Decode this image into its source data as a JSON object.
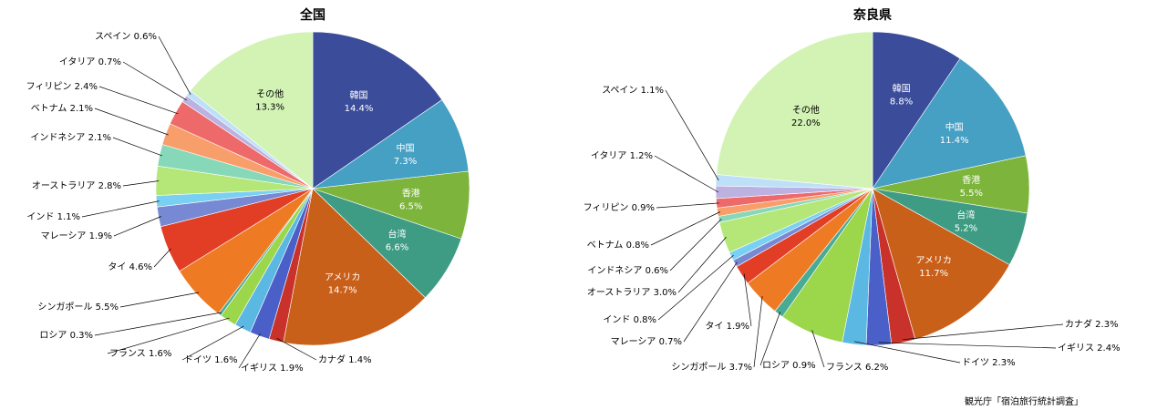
{
  "source": "観光庁「宿泊旅行統計調査」",
  "chart_data": [
    {
      "type": "pie",
      "title": "全国",
      "slices": [
        {
          "name": "韓国",
          "value": 14.4,
          "label": "14.4%",
          "color": "#3b4c9b"
        },
        {
          "name": "中国",
          "value": 7.3,
          "label": "7.3%",
          "color": "#45a0c4"
        },
        {
          "name": "香港",
          "value": 6.5,
          "label": "6.5%",
          "color": "#7db43c"
        },
        {
          "name": "台湾",
          "value": 6.6,
          "label": "6.6%",
          "color": "#3f9c84"
        },
        {
          "name": "アメリカ",
          "value": 14.7,
          "label": "14.7%",
          "color": "#c9601a"
        },
        {
          "name": "カナダ",
          "value": 1.4,
          "label": "1.4%",
          "color": "#c8322a"
        },
        {
          "name": "イギリス",
          "value": 1.9,
          "label": "1.9%",
          "color": "#4a60c8"
        },
        {
          "name": "ドイツ",
          "value": 1.6,
          "label": "1.6%",
          "color": "#5ab8e2"
        },
        {
          "name": "フランス",
          "value": 1.6,
          "label": "1.6%",
          "color": "#9cd64a"
        },
        {
          "name": "ロシア",
          "value": 0.3,
          "label": "0.3%",
          "color": "#4aab94"
        },
        {
          "name": "シンガポール",
          "value": 5.5,
          "label": "5.5%",
          "color": "#ee7a24"
        },
        {
          "name": "タイ",
          "value": 4.6,
          "label": "4.6%",
          "color": "#e23e26"
        },
        {
          "name": "マレーシア",
          "value": 1.9,
          "label": "1.9%",
          "color": "#7889d4"
        },
        {
          "name": "インド",
          "value": 1.1,
          "label": "1.1%",
          "color": "#7ad0f2"
        },
        {
          "name": "オーストラリア",
          "value": 2.8,
          "label": "2.8%",
          "color": "#b4e678"
        },
        {
          "name": "インドネシア",
          "value": 2.1,
          "label": "2.1%",
          "color": "#86d8b8"
        },
        {
          "name": "ベトナム",
          "value": 2.1,
          "label": "2.1%",
          "color": "#f89e6a"
        },
        {
          "name": "フィリピン",
          "value": 2.4,
          "label": "2.4%",
          "color": "#ee6a6a"
        },
        {
          "name": "イタリア",
          "value": 0.7,
          "label": "0.7%",
          "color": "#bcb2e2"
        },
        {
          "name": "スペイン",
          "value": 0.6,
          "label": "0.6%",
          "color": "#bde0f8"
        },
        {
          "name": "その他",
          "value": 13.3,
          "label": "13.3%",
          "color": "#d2f3b4"
        }
      ]
    },
    {
      "type": "pie",
      "title": "奈良県",
      "slices": [
        {
          "name": "韓国",
          "value": 8.8,
          "label": "8.8%",
          "color": "#3b4c9b"
        },
        {
          "name": "中国",
          "value": 11.4,
          "label": "11.4%",
          "color": "#45a0c4"
        },
        {
          "name": "香港",
          "value": 5.5,
          "label": "5.5%",
          "color": "#7db43c"
        },
        {
          "name": "台湾",
          "value": 5.2,
          "label": "5.2%",
          "color": "#3f9c84"
        },
        {
          "name": "アメリカ",
          "value": 11.7,
          "label": "11.7%",
          "color": "#c9601a"
        },
        {
          "name": "カナダ",
          "value": 2.3,
          "label": "2.3%",
          "color": "#c8322a"
        },
        {
          "name": "イギリス",
          "value": 2.4,
          "label": "2.4%",
          "color": "#4a60c8"
        },
        {
          "name": "ドイツ",
          "value": 2.3,
          "label": "2.3%",
          "color": "#5ab8e2"
        },
        {
          "name": "フランス",
          "value": 6.2,
          "label": "6.2%",
          "color": "#9cd64a"
        },
        {
          "name": "ロシア",
          "value": 0.9,
          "label": "0.9%",
          "color": "#4aab94"
        },
        {
          "name": "シンガポール",
          "value": 3.7,
          "label": "3.7%",
          "color": "#ee7a24"
        },
        {
          "name": "タイ",
          "value": 1.9,
          "label": "1.9%",
          "color": "#e23e26"
        },
        {
          "name": "マレーシア",
          "value": 0.7,
          "label": "0.7%",
          "color": "#7889d4"
        },
        {
          "name": "インド",
          "value": 0.8,
          "label": "0.8%",
          "color": "#7ad0f2"
        },
        {
          "name": "オーストラリア",
          "value": 3.0,
          "label": "3.0%",
          "color": "#b4e678"
        },
        {
          "name": "インドネシア",
          "value": 0.6,
          "label": "0.6%",
          "color": "#86d8b8"
        },
        {
          "name": "ベトナム",
          "value": 0.8,
          "label": "0.8%",
          "color": "#f89e6a"
        },
        {
          "name": "フィリピン",
          "value": 0.9,
          "label": "0.9%",
          "color": "#ee6a6a"
        },
        {
          "name": "イタリア",
          "value": 1.2,
          "label": "1.2%",
          "color": "#bcb2e2"
        },
        {
          "name": "スペイン",
          "value": 1.1,
          "label": "1.1%",
          "color": "#bde0f8"
        },
        {
          "name": "その他",
          "value": 22.0,
          "label": "22.0%",
          "color": "#d2f3b4"
        }
      ]
    }
  ]
}
